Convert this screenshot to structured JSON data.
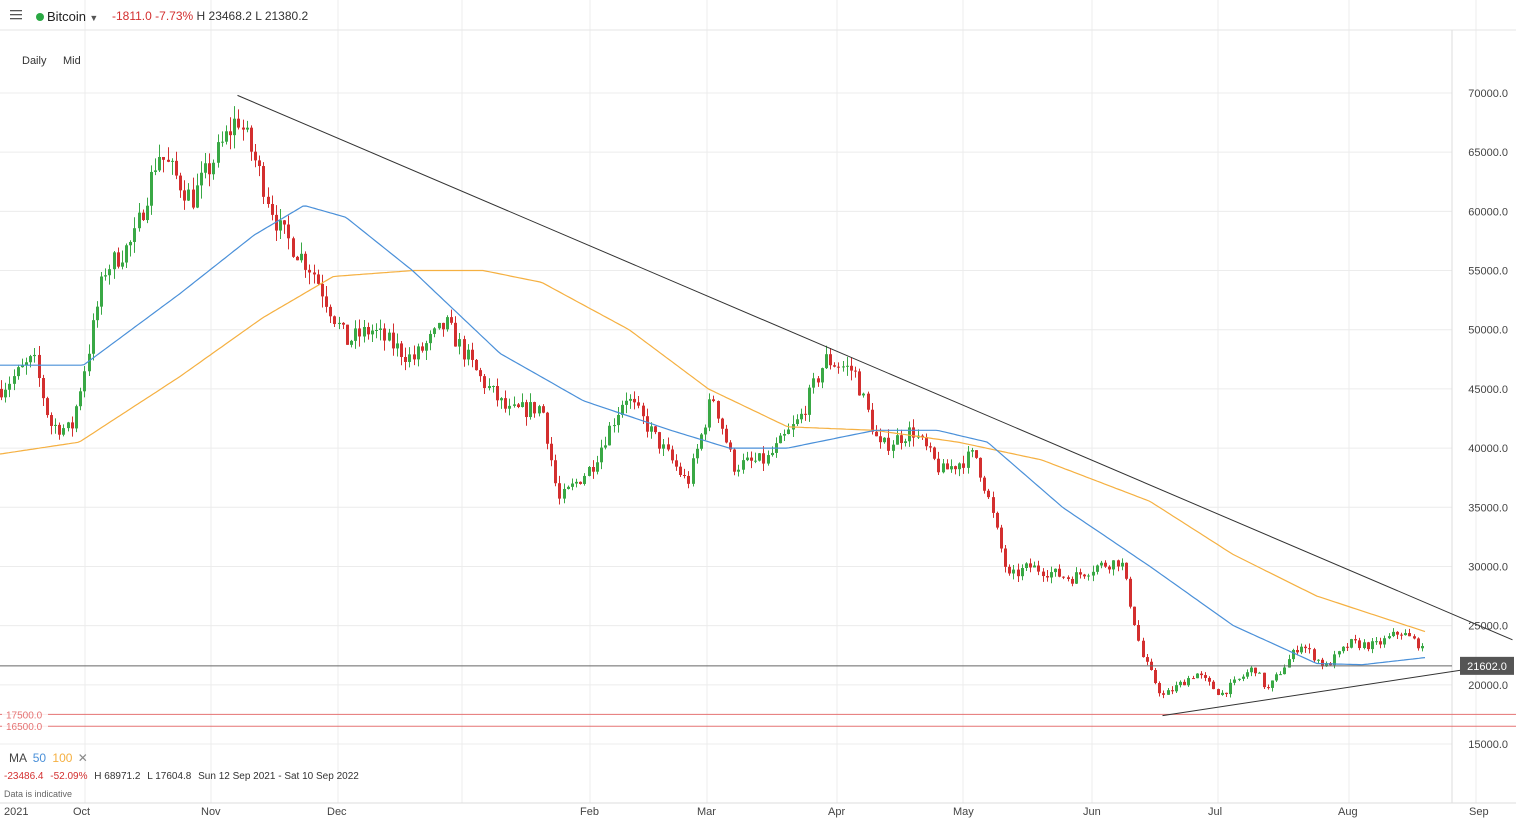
{
  "header": {
    "instrument": "Bitcoin",
    "change": "-1811.0",
    "change_pct": "-7.73%",
    "high": "H 23468.2",
    "low": "L 21380.2",
    "status_color": "#2aa843"
  },
  "toolbar": {
    "interval": "Daily",
    "price_type": "Mid"
  },
  "legend": {
    "ma_label": "MA",
    "ma50": "50",
    "ma100": "100",
    "ma50_color": "#4a90d9",
    "ma100_color": "#f5b041"
  },
  "footer": {
    "change": "-23486.4",
    "change_pct": "-52.09%",
    "high": "H 68971.2",
    "low": "L 17604.8",
    "range": "Sun 12 Sep 2021 - Sat 10 Sep 2022",
    "note": "Data is indicative"
  },
  "chart_data": {
    "type": "candlestick",
    "y_axis": {
      "ticks": [
        15000,
        20000,
        25000,
        30000,
        35000,
        40000,
        45000,
        50000,
        55000,
        60000,
        65000,
        70000
      ],
      "format": "0.0"
    },
    "x_axis": {
      "labels": [
        "2021",
        "Oct",
        "Nov",
        "Dec",
        "Feb",
        "Mar",
        "Apr",
        "May",
        "Jun",
        "Jul",
        "Aug",
        "Sep"
      ]
    },
    "current_price": {
      "value": 21602.0,
      "label": "21602.0",
      "color": "#555555"
    },
    "horizontal_levels": [
      {
        "value": 17500.0,
        "label": "17500.0",
        "color": "#e57373"
      },
      {
        "value": 16500.0,
        "label": "16500.0",
        "color": "#e57373"
      }
    ],
    "up_color": "#39a845",
    "down_color": "#d32f2f",
    "trendlines": [
      {
        "name": "resistance",
        "points": [
          [
            "2021-11-08",
            69800
          ],
          [
            "2022-09-10",
            23800
          ]
        ]
      },
      {
        "name": "support",
        "points": [
          [
            "2022-06-18",
            17400
          ],
          [
            "2022-09-10",
            21900
          ]
        ]
      }
    ],
    "price_anchors": [
      [
        "2021-09-12",
        45000
      ],
      [
        "2021-09-20",
        47500
      ],
      [
        "2021-09-24",
        42000
      ],
      [
        "2021-09-29",
        41500
      ],
      [
        "2021-10-03",
        48000
      ],
      [
        "2021-10-07",
        55000
      ],
      [
        "2021-10-14",
        57500
      ],
      [
        "2021-10-20",
        65000
      ],
      [
        "2021-10-28",
        61000
      ],
      [
        "2021-11-08",
        68000
      ],
      [
        "2021-11-12",
        64500
      ],
      [
        "2021-11-18",
        58500
      ],
      [
        "2021-11-26",
        55000
      ],
      [
        "2021-12-04",
        49000
      ],
      [
        "2021-12-10",
        50000
      ],
      [
        "2021-12-20",
        47500
      ],
      [
        "2021-12-28",
        50500
      ],
      [
        "2022-01-05",
        46000
      ],
      [
        "2022-01-12",
        43000
      ],
      [
        "2022-01-20",
        43500
      ],
      [
        "2022-01-24",
        35500
      ],
      [
        "2022-02-01",
        38500
      ],
      [
        "2022-02-09",
        44500
      ],
      [
        "2022-02-17",
        40500
      ],
      [
        "2022-02-24",
        37000
      ],
      [
        "2022-03-02",
        44500
      ],
      [
        "2022-03-07",
        38500
      ],
      [
        "2022-03-15",
        39000
      ],
      [
        "2022-03-23",
        42500
      ],
      [
        "2022-03-29",
        47500
      ],
      [
        "2022-04-05",
        46500
      ],
      [
        "2022-04-11",
        40000
      ],
      [
        "2022-04-19",
        41500
      ],
      [
        "2022-04-26",
        38000
      ],
      [
        "2022-05-04",
        39500
      ],
      [
        "2022-05-07",
        36000
      ],
      [
        "2022-05-12",
        29000
      ],
      [
        "2022-05-17",
        30000
      ],
      [
        "2022-05-27",
        29000
      ],
      [
        "2022-06-02",
        30000
      ],
      [
        "2022-06-08",
        30500
      ],
      [
        "2022-06-13",
        22500
      ],
      [
        "2022-06-18",
        19000
      ],
      [
        "2022-06-26",
        21000
      ],
      [
        "2022-07-02",
        19200
      ],
      [
        "2022-07-10",
        21500
      ],
      [
        "2022-07-13",
        19500
      ],
      [
        "2022-07-21",
        23500
      ],
      [
        "2022-07-27",
        21500
      ],
      [
        "2022-08-02",
        23500
      ],
      [
        "2022-08-08",
        23300
      ],
      [
        "2022-08-14",
        24500
      ],
      [
        "2022-08-19",
        23300
      ],
      [
        "2022-08-20",
        21600
      ]
    ],
    "ma50_anchors": [
      [
        "2021-09-12",
        47000
      ],
      [
        "2021-10-02",
        47000
      ],
      [
        "2021-10-25",
        53000
      ],
      [
        "2021-11-12",
        58000
      ],
      [
        "2021-11-24",
        60500
      ],
      [
        "2021-12-04",
        59500
      ],
      [
        "2021-12-20",
        55000
      ],
      [
        "2022-01-10",
        48000
      ],
      [
        "2022-01-30",
        44000
      ],
      [
        "2022-02-20",
        41500
      ],
      [
        "2022-03-06",
        40000
      ],
      [
        "2022-03-20",
        40000
      ],
      [
        "2022-04-10",
        41500
      ],
      [
        "2022-04-25",
        41500
      ],
      [
        "2022-05-07",
        40500
      ],
      [
        "2022-05-25",
        35000
      ],
      [
        "2022-06-15",
        30000
      ],
      [
        "2022-07-05",
        25000
      ],
      [
        "2022-07-25",
        21800
      ],
      [
        "2022-08-05",
        21700
      ],
      [
        "2022-08-20",
        22300
      ]
    ],
    "ma100_anchors": [
      [
        "2021-09-12",
        39500
      ],
      [
        "2021-10-01",
        40500
      ],
      [
        "2021-10-25",
        46000
      ],
      [
        "2021-11-14",
        51000
      ],
      [
        "2021-12-01",
        54500
      ],
      [
        "2021-12-20",
        55000
      ],
      [
        "2022-01-06",
        55000
      ],
      [
        "2022-01-20",
        54000
      ],
      [
        "2022-02-10",
        50000
      ],
      [
        "2022-03-01",
        45000
      ],
      [
        "2022-03-20",
        41800
      ],
      [
        "2022-04-10",
        41500
      ],
      [
        "2022-04-30",
        40500
      ],
      [
        "2022-05-20",
        39000
      ],
      [
        "2022-06-15",
        35500
      ],
      [
        "2022-07-05",
        31000
      ],
      [
        "2022-07-25",
        27500
      ],
      [
        "2022-08-20",
        24500
      ]
    ]
  }
}
